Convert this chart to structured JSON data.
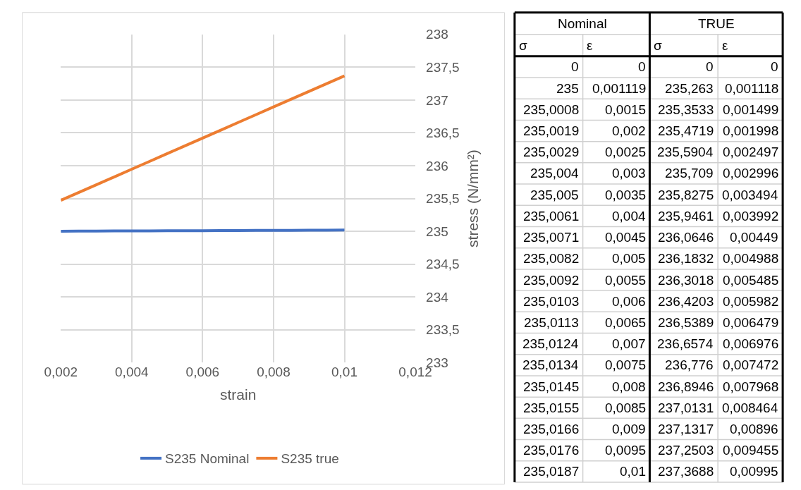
{
  "chart_data": [
    {
      "type": "line",
      "xlabel": "strain",
      "ylabel": "stress (N/mm²)",
      "x": [
        0.002,
        0.0025,
        0.003,
        0.0035,
        0.004,
        0.0045,
        0.005,
        0.0055,
        0.006,
        0.0065,
        0.007,
        0.0075,
        0.008,
        0.0085,
        0.009,
        0.0095,
        0.01
      ],
      "series": [
        {
          "name": "S235 Nominal",
          "color": "#4472c4",
          "values": [
            235.0019,
            235.0029,
            235.004,
            235.005,
            235.0061,
            235.0071,
            235.0082,
            235.0092,
            235.0103,
            235.0113,
            235.0124,
            235.0134,
            235.0145,
            235.0155,
            235.0166,
            235.0176,
            235.0187
          ]
        },
        {
          "name": "S235 true",
          "color": "#ed7d31",
          "values": [
            235.4719,
            235.5904,
            235.709,
            235.8275,
            235.9461,
            236.0646,
            236.1832,
            236.3018,
            236.4203,
            236.5389,
            236.6574,
            236.776,
            236.8946,
            237.0131,
            237.1317,
            237.2503,
            237.3688
          ]
        }
      ],
      "xlim": [
        0.002,
        0.012
      ],
      "xticks": [
        {
          "value": 0.002,
          "label": "0,002"
        },
        {
          "value": 0.004,
          "label": "0,004"
        },
        {
          "value": 0.006,
          "label": "0,006"
        },
        {
          "value": 0.008,
          "label": "0,008"
        },
        {
          "value": 0.01,
          "label": "0,01"
        },
        {
          "value": 0.012,
          "label": "0,012"
        }
      ],
      "ylim": [
        233,
        238
      ],
      "yticks": [
        233,
        {
          "value": 233.5,
          "label": "233,5"
        },
        234,
        {
          "value": 234.5,
          "label": "234,5"
        },
        235,
        {
          "value": 235.5,
          "label": "235,5"
        },
        236,
        {
          "value": 236.5,
          "label": "236,5"
        },
        237,
        {
          "value": 237.5,
          "label": "237,5"
        },
        238
      ],
      "grid": true,
      "legend": "bottom",
      "marker": "none",
      "line_style": "solid"
    },
    {
      "type": "other",
      "annotations": [
        "Nominal",
        "TRUE",
        "σ",
        "ε",
        "σ",
        "ε",
        "0",
        "0",
        "0",
        "0",
        "235",
        "0,001119",
        "235,263",
        "0,001118",
        "235,0008",
        "0,0015",
        "235,3533",
        "0,001499",
        "235,0019",
        "0,002",
        "235,4719",
        "0,001998",
        "235,0029",
        "0,0025",
        "235,5904",
        "0,002497",
        "235,004",
        "0,003",
        "235,709",
        "0,002996",
        "235,005",
        "0,0035",
        "235,8275",
        "0,003494",
        "235,0061",
        "0,004",
        "235,9461",
        "0,003992",
        "235,0071",
        "0,0045",
        "236,0646",
        "0,00449",
        "235,0082",
        "0,005",
        "236,1832",
        "0,004988",
        "235,0092",
        "0,0055",
        "236,3018",
        "0,005485",
        "235,0103",
        "0,006",
        "236,4203",
        "0,005982",
        "235,0113",
        "0,0065",
        "236,5389",
        "0,006479",
        "235,0124",
        "0,007",
        "236,6574",
        "0,006976",
        "235,0134",
        "0,0075",
        "236,776",
        "0,007472",
        "235,0145",
        "0,008",
        "236,8946",
        "0,007968",
        "235,0155",
        "0,0085",
        "237,0131",
        "0,008464",
        "235,0166",
        "0,009",
        "237,1317",
        "0,00896",
        "235,0176",
        "0,0095",
        "237,2503",
        "0,009455",
        "235,0187",
        "0,01",
        "237,3688",
        "0,00995"
      ]
    }
  ]
}
